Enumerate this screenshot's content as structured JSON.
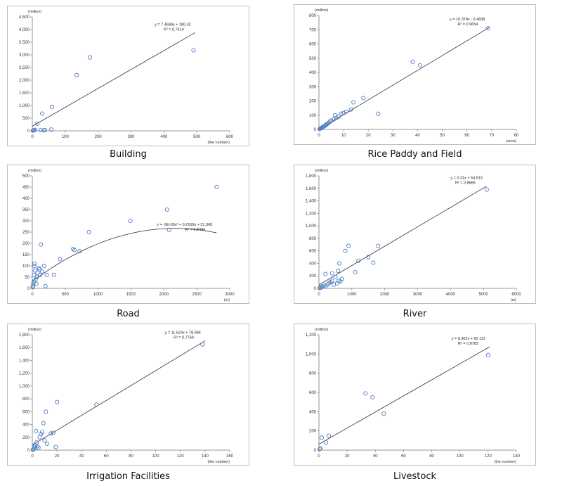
{
  "chart_data": [
    {
      "type": "scatter",
      "title": "Building",
      "xlabel": "(the number)",
      "ylabel": "(million)",
      "xlim": [
        0,
        600
      ],
      "ylim": [
        0,
        4500
      ],
      "xticks": [
        0,
        100,
        200,
        300,
        400,
        500,
        600
      ],
      "yticks": [
        0,
        500,
        1000,
        1500,
        2000,
        2500,
        3000,
        3500,
        4000,
        4500
      ],
      "ytick_labels": [
        "0",
        "500",
        "1,000",
        "1,500",
        "2,000",
        "2,500",
        "3,000",
        "3,500",
        "4,000",
        "4,500"
      ],
      "equation": "y = 7.4689x + 180.42",
      "r2": "R² = 0.7414",
      "trend": {
        "kind": "linear",
        "a": 7.4689,
        "b": 180.42,
        "x0": 0,
        "x1": 495
      },
      "points": [
        [
          2,
          10
        ],
        [
          3,
          20
        ],
        [
          5,
          30
        ],
        [
          8,
          40
        ],
        [
          15,
          280
        ],
        [
          25,
          30
        ],
        [
          35,
          20
        ],
        [
          38,
          30
        ],
        [
          30,
          680
        ],
        [
          60,
          950
        ],
        [
          58,
          50
        ],
        [
          135,
          2200
        ],
        [
          175,
          2900
        ],
        [
          490,
          3180
        ]
      ],
      "grid": false
    },
    {
      "type": "scatter",
      "title": "Rice Paddy and Field",
      "xlabel": "(area)",
      "ylabel": "(million)",
      "xlim": [
        0,
        80
      ],
      "ylim": [
        0,
        800
      ],
      "xticks": [
        0,
        10,
        20,
        30,
        40,
        50,
        60,
        70,
        80
      ],
      "yticks": [
        0,
        100,
        200,
        300,
        400,
        500,
        600,
        700,
        800
      ],
      "ytick_labels": [
        "0",
        "100",
        "200",
        "300",
        "400",
        "500",
        "600",
        "700",
        "800"
      ],
      "equation": "y = 10.378x - 0.4838",
      "r2": "R² = 0.9654",
      "trend": {
        "kind": "linear",
        "a": 10.378,
        "b": -0.4838,
        "x0": 0,
        "x1": 69
      },
      "points": [
        [
          0.3,
          3
        ],
        [
          0.6,
          6
        ],
        [
          1,
          10
        ],
        [
          1.3,
          14
        ],
        [
          1.7,
          18
        ],
        [
          2,
          22
        ],
        [
          2.4,
          26
        ],
        [
          2.8,
          30
        ],
        [
          3,
          35
        ],
        [
          3.5,
          40
        ],
        [
          4,
          48
        ],
        [
          4.5,
          55
        ],
        [
          5,
          62
        ],
        [
          6,
          70
        ],
        [
          7,
          80
        ],
        [
          6.5,
          100
        ],
        [
          8,
          90
        ],
        [
          9,
          110
        ],
        [
          10,
          115
        ],
        [
          11,
          125
        ],
        [
          13,
          140
        ],
        [
          14,
          190
        ],
        [
          18,
          220
        ],
        [
          24,
          110
        ],
        [
          38,
          475
        ],
        [
          41,
          450
        ],
        [
          68.5,
          710
        ]
      ],
      "grid": false
    },
    {
      "type": "scatter",
      "title": "Road",
      "xlabel": "(m)",
      "ylabel": "(million)",
      "xlim": [
        0,
        3000
      ],
      "ylim": [
        0,
        500
      ],
      "xticks": [
        0,
        500,
        1000,
        1500,
        2000,
        2500,
        3000
      ],
      "yticks": [
        0,
        50,
        100,
        150,
        200,
        250,
        300,
        350,
        400,
        450,
        500
      ],
      "ytick_labels": [
        "0",
        "50",
        "100",
        "150",
        "200",
        "250",
        "300",
        "350",
        "400",
        "450",
        "500"
      ],
      "equation": "y = -5E-05x² + 0.2169x + 31.368",
      "r2": "R² = 0.8446",
      "trend": {
        "kind": "poly2",
        "a2": -5e-05,
        "a1": 0.2169,
        "a0": 31.368,
        "x0": 0,
        "x1": 2800
      },
      "points": [
        [
          5,
          5
        ],
        [
          10,
          10
        ],
        [
          15,
          20
        ],
        [
          20,
          30
        ],
        [
          25,
          60
        ],
        [
          30,
          100
        ],
        [
          35,
          110
        ],
        [
          40,
          80
        ],
        [
          50,
          40
        ],
        [
          60,
          20
        ],
        [
          70,
          50
        ],
        [
          80,
          70
        ],
        [
          100,
          90
        ],
        [
          110,
          85
        ],
        [
          120,
          60
        ],
        [
          130,
          195
        ],
        [
          150,
          75
        ],
        [
          180,
          100
        ],
        [
          200,
          10
        ],
        [
          220,
          60
        ],
        [
          330,
          60
        ],
        [
          420,
          130
        ],
        [
          620,
          175
        ],
        [
          640,
          170
        ],
        [
          720,
          165
        ],
        [
          860,
          250
        ],
        [
          1490,
          300
        ],
        [
          2050,
          350
        ],
        [
          2080,
          260
        ],
        [
          2800,
          450
        ]
      ],
      "grid": false
    },
    {
      "type": "scatter",
      "title": "River",
      "xlabel": "(m)",
      "ylabel": "(million)",
      "xlim": [
        0,
        6000
      ],
      "ylim": [
        0,
        1800
      ],
      "xticks": [
        0,
        1000,
        2000,
        3000,
        4000,
        5000,
        6000
      ],
      "yticks": [
        0,
        200,
        400,
        600,
        800,
        1000,
        1200,
        1400,
        1600,
        1800
      ],
      "ytick_labels": [
        "0",
        "200",
        "400",
        "600",
        "800",
        "1,000",
        "1,200",
        "1,400",
        "1,600",
        "1,800"
      ],
      "equation": "y = 0.31x + 54.913",
      "r2": "R² = 0.8666",
      "trend": {
        "kind": "linear",
        "a": 0.31,
        "b": 54.913,
        "x0": 0,
        "x1": 5100
      },
      "points": [
        [
          20,
          5
        ],
        [
          50,
          10
        ],
        [
          80,
          20
        ],
        [
          100,
          30
        ],
        [
          150,
          40
        ],
        [
          200,
          30
        ],
        [
          250,
          60
        ],
        [
          300,
          80
        ],
        [
          350,
          100
        ],
        [
          400,
          120
        ],
        [
          450,
          60
        ],
        [
          500,
          180
        ],
        [
          550,
          80
        ],
        [
          600,
          120
        ],
        [
          650,
          110
        ],
        [
          700,
          150
        ],
        [
          200,
          230
        ],
        [
          400,
          240
        ],
        [
          580,
          280
        ],
        [
          620,
          400
        ],
        [
          800,
          600
        ],
        [
          900,
          680
        ],
        [
          1100,
          260
        ],
        [
          1200,
          440
        ],
        [
          1500,
          500
        ],
        [
          1650,
          410
        ],
        [
          1800,
          680
        ],
        [
          5100,
          1580
        ]
      ],
      "grid": false
    },
    {
      "type": "scatter",
      "title": "Irrigation Facilities",
      "xlabel": "(the number)",
      "ylabel": "(million)",
      "xlim": [
        0,
        160
      ],
      "ylim": [
        0,
        1800
      ],
      "xticks": [
        0,
        20,
        40,
        60,
        80,
        100,
        120,
        140,
        160
      ],
      "yticks": [
        0,
        200,
        400,
        600,
        800,
        1000,
        1200,
        1400,
        1600,
        1800
      ],
      "ytick_labels": [
        "0",
        "200",
        "400",
        "600",
        "800",
        "1,000",
        "1,200",
        "1,400",
        "1,600",
        "1,800"
      ],
      "equation": "y = 11.624x + 78.684",
      "r2": "R² = 0.7769",
      "trend": {
        "kind": "linear",
        "a": 11.624,
        "b": 78.684,
        "x0": 0,
        "x1": 140
      },
      "points": [
        [
          0.5,
          5
        ],
        [
          1,
          20
        ],
        [
          1.5,
          50
        ],
        [
          2,
          80
        ],
        [
          2.5,
          30
        ],
        [
          3,
          300
        ],
        [
          3.5,
          120
        ],
        [
          4,
          60
        ],
        [
          5,
          40
        ],
        [
          6,
          200
        ],
        [
          7,
          250
        ],
        [
          8,
          280
        ],
        [
          9,
          420
        ],
        [
          10,
          150
        ],
        [
          11,
          600
        ],
        [
          12,
          100
        ],
        [
          15,
          260
        ],
        [
          17,
          270
        ],
        [
          19,
          50
        ],
        [
          20,
          750
        ],
        [
          52,
          710
        ],
        [
          138,
          1650
        ]
      ],
      "grid": false
    },
    {
      "type": "scatter",
      "title": "Livestock",
      "xlabel": "(the number)",
      "ylabel": "(million)",
      "xlim": [
        0,
        140
      ],
      "ylim": [
        0,
        1200
      ],
      "xticks": [
        0,
        20,
        40,
        60,
        80,
        100,
        120,
        140
      ],
      "yticks": [
        0,
        200,
        400,
        600,
        800,
        1000,
        1200
      ],
      "ytick_labels": [
        "0",
        "200",
        "400",
        "600",
        "800",
        "1,000",
        "1,200"
      ],
      "equation": "y = 8.362x + 62.113",
      "r2": "R² = 0.8783",
      "trend": {
        "kind": "linear",
        "a": 8.362,
        "b": 62.113,
        "x0": 0,
        "x1": 121
      },
      "points": [
        [
          0.5,
          10
        ],
        [
          1,
          20
        ],
        [
          2,
          130
        ],
        [
          5,
          80
        ],
        [
          7,
          150
        ],
        [
          33,
          590
        ],
        [
          38,
          550
        ],
        [
          46,
          380
        ],
        [
          120,
          990
        ]
      ],
      "grid": false
    }
  ]
}
